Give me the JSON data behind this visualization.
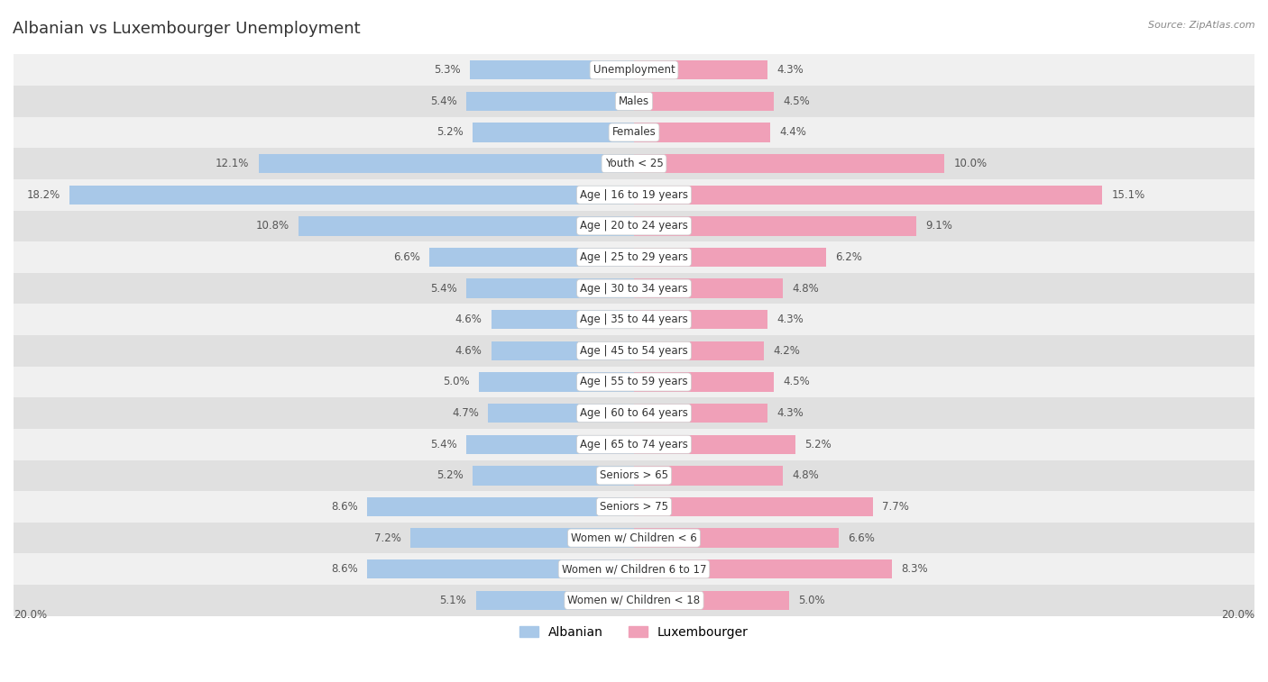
{
  "title": "Albanian vs Luxembourger Unemployment",
  "source": "Source: ZipAtlas.com",
  "categories": [
    "Unemployment",
    "Males",
    "Females",
    "Youth < 25",
    "Age | 16 to 19 years",
    "Age | 20 to 24 years",
    "Age | 25 to 29 years",
    "Age | 30 to 34 years",
    "Age | 35 to 44 years",
    "Age | 45 to 54 years",
    "Age | 55 to 59 years",
    "Age | 60 to 64 years",
    "Age | 65 to 74 years",
    "Seniors > 65",
    "Seniors > 75",
    "Women w/ Children < 6",
    "Women w/ Children 6 to 17",
    "Women w/ Children < 18"
  ],
  "albanian": [
    5.3,
    5.4,
    5.2,
    12.1,
    18.2,
    10.8,
    6.6,
    5.4,
    4.6,
    4.6,
    5.0,
    4.7,
    5.4,
    5.2,
    8.6,
    7.2,
    8.6,
    5.1
  ],
  "luxembourger": [
    4.3,
    4.5,
    4.4,
    10.0,
    15.1,
    9.1,
    6.2,
    4.8,
    4.3,
    4.2,
    4.5,
    4.3,
    5.2,
    4.8,
    7.7,
    6.6,
    8.3,
    5.0
  ],
  "albanian_color": "#a8c8e8",
  "luxembourger_color": "#f0a0b8",
  "row_bg_light": "#f0f0f0",
  "row_bg_dark": "#e0e0e0",
  "bar_height": 0.62,
  "xlim": 20.0,
  "title_fontsize": 13,
  "label_fontsize": 8.5,
  "value_fontsize": 8.5,
  "legend_fontsize": 10,
  "source_fontsize": 8
}
